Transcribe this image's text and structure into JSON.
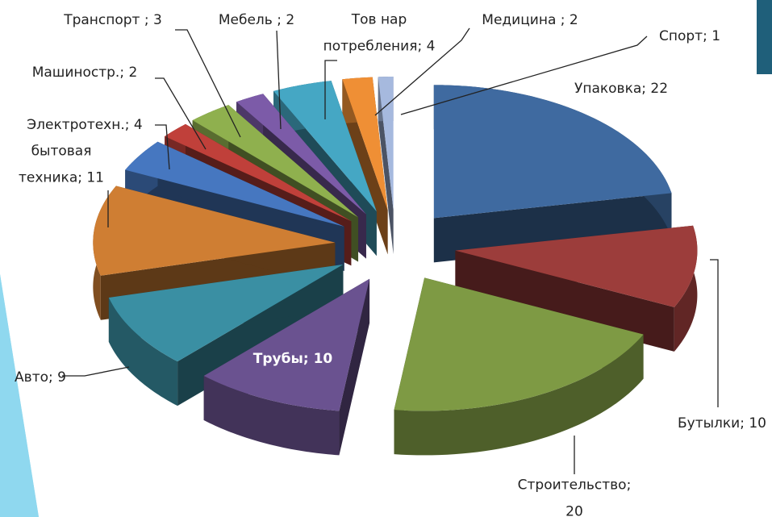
{
  "chart_data": {
    "type": "pie",
    "values": [
      22,
      10,
      20,
      10,
      9,
      11,
      4,
      2,
      3,
      2,
      4,
      2,
      1
    ],
    "value_labels": [
      "Упаковка; 22",
      "Бутылки; 10",
      "Строительство;\n20",
      "Трубы; 10",
      "Авто; 9",
      "бытовая\nтехника; 11",
      "Электротехн.; 4",
      "Машиностр.; 2",
      "Транспорт ; 3",
      "Мебель ; 2",
      "Тов нар\nпотребления; 4",
      "Медицина ; 2",
      "Спорт; 1"
    ],
    "colors": [
      "#3f6aa0",
      "#9c3d3b",
      "#7e9a44",
      "#6a5290",
      "#3a8fa3",
      "#cf7e33",
      "#4677c0",
      "#c0403a",
      "#8fb04e",
      "#7c5ba8",
      "#45a7c4",
      "#ef8f35",
      "#a6b9de"
    ]
  }
}
